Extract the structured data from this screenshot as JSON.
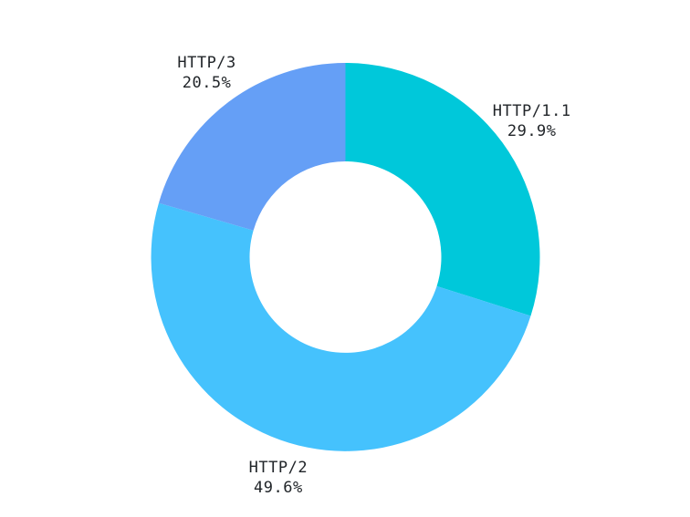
{
  "chart_data": {
    "type": "pie",
    "variant": "donut",
    "title": "",
    "units": "%",
    "total": 100,
    "direction": "clockwise",
    "start_angle_deg": 0,
    "inner_radius_ratio": 0.493,
    "legend_position": "outside-labels",
    "background_color": "#ffffff",
    "label_color": "#212529",
    "categories": [
      "HTTP/1.1",
      "HTTP/2",
      "HTTP/3"
    ],
    "values": [
      29.9,
      49.6,
      20.5
    ],
    "segments": [
      {
        "label": "HTTP/1.1",
        "value": 29.9,
        "display_value": "29.9%",
        "color": "#00c8da"
      },
      {
        "label": "HTTP/2",
        "value": 49.6,
        "display_value": "49.6%",
        "color": "#45c2fd"
      },
      {
        "label": "HTTP/3",
        "value": 20.5,
        "display_value": "20.5%",
        "color": "#659ff6"
      }
    ]
  }
}
